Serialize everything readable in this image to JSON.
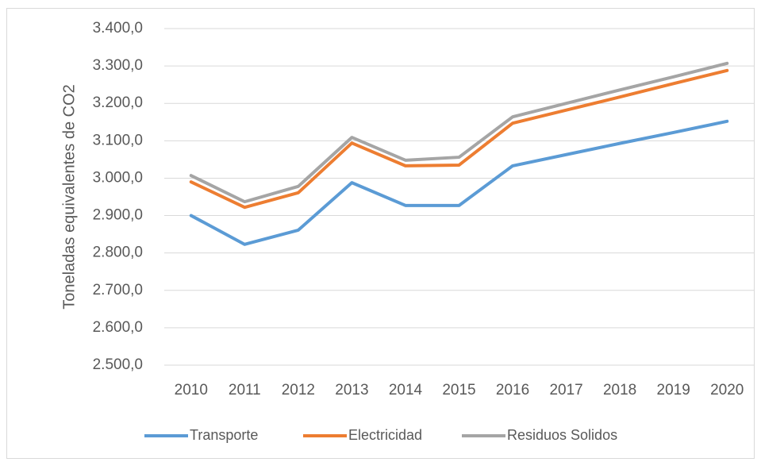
{
  "chart_data": {
    "type": "line",
    "y_label": "Toneladas equivalentes de CO2",
    "categories": [
      "2010",
      "2011",
      "2012",
      "2013",
      "2014",
      "2015",
      "2016",
      "2017",
      "2018",
      "2019",
      "2020"
    ],
    "series": [
      {
        "name": "Transporte",
        "color": "#5b9bd5",
        "values": [
          2900,
          2823,
          2861,
          2988,
          2927,
          2927,
          3033,
          3063,
          3093,
          3122,
          3152
        ]
      },
      {
        "name": "Electricidad",
        "color": "#ed7d31",
        "values": [
          2990,
          2922,
          2961,
          3094,
          3033,
          3035,
          3147,
          3182,
          3217,
          3253,
          3288
        ]
      },
      {
        "name": "Residuos Solidos",
        "color": "#a5a5a5",
        "values": [
          3007,
          2937,
          2978,
          3109,
          3048,
          3056,
          3164,
          3200,
          3236,
          3271,
          3307
        ]
      }
    ],
    "ylim": [
      2500,
      3400
    ],
    "yticks": [
      {
        "value": 2500,
        "label": "2.500,0"
      },
      {
        "value": 2600,
        "label": "2.600,0"
      },
      {
        "value": 2700,
        "label": "2.700,0"
      },
      {
        "value": 2800,
        "label": "2.800,0"
      },
      {
        "value": 2900,
        "label": "2.900,0"
      },
      {
        "value": 3000,
        "label": "3.000,0"
      },
      {
        "value": 3100,
        "label": "3.100,0"
      },
      {
        "value": 3200,
        "label": "3.200,0"
      },
      {
        "value": 3300,
        "label": "3.300,0"
      },
      {
        "value": 3400,
        "label": "3.400,0"
      }
    ],
    "grid": true,
    "legend": "bottom"
  }
}
